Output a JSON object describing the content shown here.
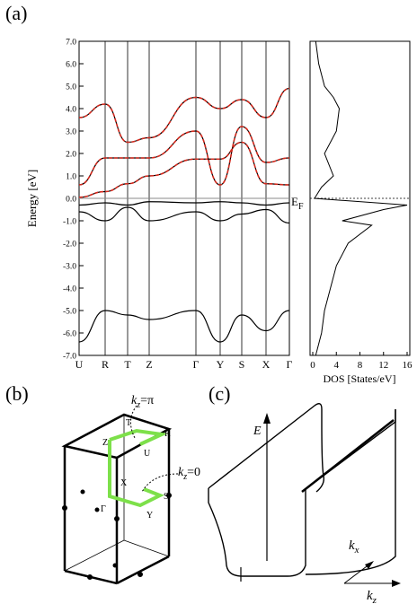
{
  "panel_labels": {
    "a": "(a)",
    "b": "(b)",
    "c": "(c)"
  },
  "band_plot": {
    "ylabel": "Energy [eV]",
    "yticks": [
      "7.0",
      "6.0",
      "5.0",
      "4.0",
      "3.0",
      "2.0",
      "1.0",
      "0.0",
      "-1.0",
      "-2.0",
      "-3.0",
      "-4.0",
      "-5.0",
      "-6.0",
      "-7.0"
    ],
    "k_labels": [
      "U",
      "R",
      "T",
      "Z",
      "Γ",
      "Y",
      "S",
      "X",
      "Γ"
    ],
    "fermi_label": "E",
    "fermi_sub": "F"
  },
  "dos_plot": {
    "xlabel": "DOS [States/eV]",
    "xticks": [
      "0",
      "4",
      "8",
      "12",
      "16"
    ]
  },
  "brillouin": {
    "kz_pi_label": "k",
    "kz_pi_sub": "z",
    "kz_pi_value": "=π",
    "kz_zero_value": "=0",
    "points": [
      "T",
      "R",
      "Z",
      "U",
      "X",
      "S",
      "Γ",
      "Y"
    ]
  },
  "surface": {
    "E_label": "E",
    "kx_label": "k",
    "kx_sub": "x",
    "kz_label": "k",
    "kz_sub": "z"
  },
  "colors": {
    "bands": "#000000",
    "dft_bands": "#d62a1e",
    "brillouin_path": "#7de04a"
  },
  "chart_data": [
    {
      "type": "line",
      "title": "",
      "xlabel": "",
      "ylabel": "Energy [eV]",
      "ylim": [
        -7.0,
        7.0
      ],
      "x_ticks": [
        "U",
        "R",
        "T",
        "Z",
        "Γ",
        "Y",
        "S",
        "X",
        "Γ"
      ],
      "series": [
        {
          "values": [
            0.05,
            0.3,
            0.65,
            1.0,
            1.75,
            1.75,
            2.5,
            0.65,
            0.6
          ]
        },
        {
          "values": [
            0.6,
            1.8,
            1.8,
            1.8,
            3.0,
            0.6,
            3.2,
            1.6,
            1.8
          ]
        },
        {
          "values": [
            3.6,
            4.2,
            2.5,
            2.7,
            4.5,
            4.0,
            4.4,
            3.6,
            4.9
          ]
        },
        {
          "values": [
            -0.3,
            -0.2,
            -0.3,
            -0.15,
            -0.2,
            -0.15,
            -0.2,
            -0.3,
            -0.2
          ]
        },
        {
          "values": [
            -0.6,
            -1.0,
            -0.4,
            -1.0,
            -0.6,
            -1.0,
            -0.7,
            -0.5,
            -1.1
          ]
        },
        {
          "values": [
            -6.4,
            -5.0,
            -5.2,
            -5.4,
            -5.0,
            -6.4,
            -5.2,
            -5.9,
            -5.0
          ]
        }
      ]
    },
    {
      "type": "line",
      "title": "",
      "xlabel": "DOS [States/eV]",
      "ylabel": "",
      "xlim": [
        0,
        16
      ],
      "ylim": [
        -7.0,
        7.0
      ],
      "series": [
        {
          "x": [
            0.5,
            1.0,
            2.0,
            3.5,
            4.5,
            4.0,
            2.0,
            3.5,
            1.5,
            0.3,
            16.0,
            12.0,
            5.0,
            10.0,
            6.0,
            4.0,
            3.0,
            2.0,
            1.5,
            0.5
          ],
          "y": [
            7.0,
            6.0,
            5.0,
            4.5,
            4.0,
            3.0,
            2.0,
            1.0,
            0.5,
            0.0,
            -0.3,
            -0.5,
            -1.0,
            -1.2,
            -2.0,
            -3.0,
            -4.0,
            -5.0,
            -6.0,
            -7.0
          ]
        }
      ]
    }
  ]
}
